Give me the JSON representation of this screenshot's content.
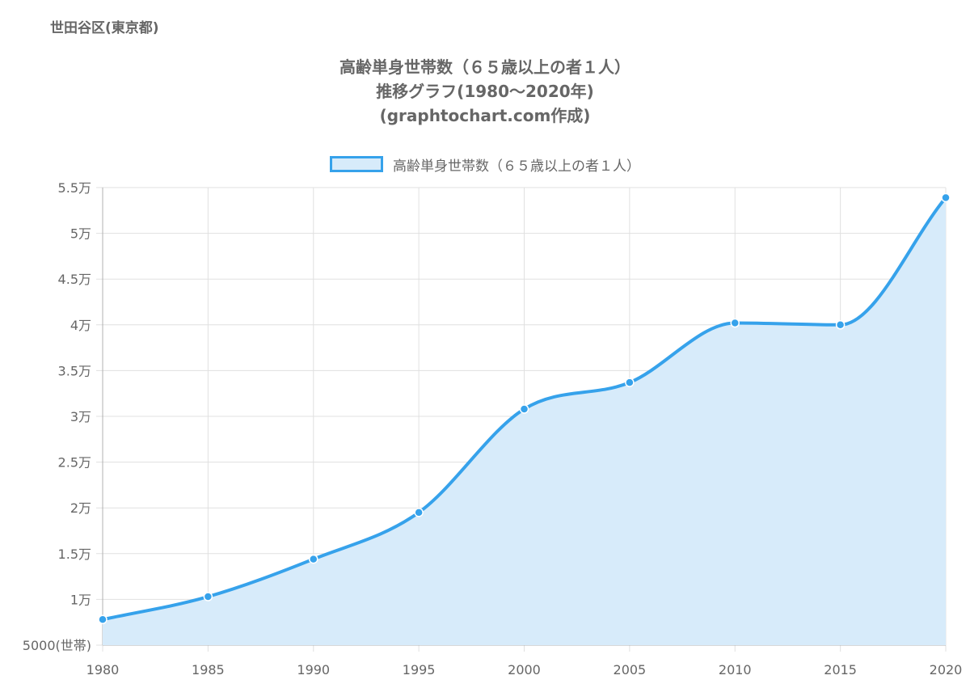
{
  "region": "世田谷区(東京都)",
  "title_lines": [
    "高齢単身世帯数（６５歳以上の者１人）",
    "推移グラフ(1980〜2020年)",
    "(graphtochart.com作成)"
  ],
  "colors": {
    "line": "#36a2eb",
    "fill": "#d7ebfa",
    "grid": "#e0e0e0",
    "text": "#666666"
  },
  "chart_data": {
    "type": "area",
    "title": "高齢単身世帯数（６５歳以上の者１人）推移グラフ(1980〜2020年)",
    "x": [
      1980,
      1985,
      1990,
      1995,
      2000,
      2005,
      2010,
      2015,
      2020
    ],
    "series": [
      {
        "name": "高齢単身世帯数（６５歳以上の者１人）",
        "values": [
          7800,
          10300,
          14400,
          19500,
          30800,
          33700,
          40200,
          40000,
          53900
        ]
      }
    ],
    "ylim": [
      5000,
      55000
    ],
    "y_ticks": [
      5000,
      10000,
      15000,
      20000,
      25000,
      30000,
      35000,
      40000,
      45000,
      50000,
      55000
    ],
    "y_tick_labels": [
      "5000(世帯)",
      "1万",
      "1.5万",
      "2万",
      "2.5万",
      "3万",
      "3.5万",
      "4万",
      "4.5万",
      "5万",
      "5.5万"
    ],
    "x_tick_labels": [
      "1980",
      "1985",
      "1990",
      "1995",
      "2000",
      "2005",
      "2010",
      "2015",
      "2020"
    ],
    "grid": true,
    "legend": "top"
  }
}
